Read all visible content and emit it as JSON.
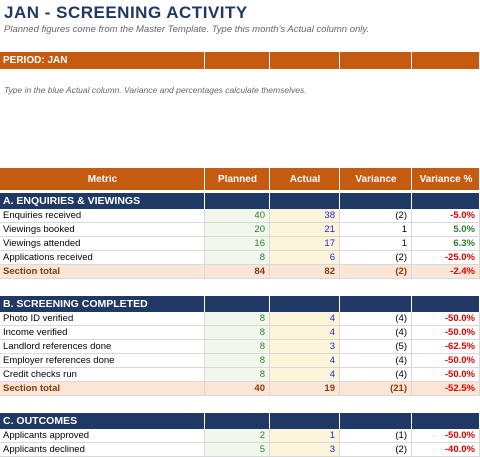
{
  "header": {
    "title": "JAN  -  SCREENING ACTIVITY",
    "subtitle": "Planned figures come from the Master Template. Type this month's Actual column only."
  },
  "period": {
    "label": "PERIOD: JAN"
  },
  "instruction": "Type in the blue Actual column. Variance and percentages calculate themselves.",
  "table": {
    "columns": [
      "Metric",
      "Planned",
      "Actual",
      "Variance",
      "Variance %"
    ],
    "sections": [
      {
        "title": "A.  ENQUIRIES & VIEWINGS",
        "rows": [
          [
            "Enquiries received",
            "40",
            "38",
            "(2)",
            "-5.0%"
          ],
          [
            "Viewings booked",
            "20",
            "21",
            "1",
            "5.0%"
          ],
          [
            "Viewings attended",
            "16",
            "17",
            "1",
            "6.3%"
          ],
          [
            "Applications received",
            "8",
            "6",
            "(2)",
            "-25.0%"
          ]
        ],
        "total": [
          "Section total",
          "84",
          "82",
          "(2)",
          "-2.4%"
        ]
      },
      {
        "title": "B.  SCREENING COMPLETED",
        "rows": [
          [
            "Photo ID verified",
            "8",
            "4",
            "(4)",
            "-50.0%"
          ],
          [
            "Income verified",
            "8",
            "4",
            "(4)",
            "-50.0%"
          ],
          [
            "Landlord references done",
            "8",
            "3",
            "(5)",
            "-62.5%"
          ],
          [
            "Employer references done",
            "8",
            "4",
            "(4)",
            "-50.0%"
          ],
          [
            "Credit checks run",
            "8",
            "4",
            "(4)",
            "-50.0%"
          ]
        ],
        "total": [
          "Section total",
          "40",
          "19",
          "(21)",
          "-52.5%"
        ]
      },
      {
        "title": "C.  OUTCOMES",
        "rows": [
          [
            "Applicants approved",
            "2",
            "1",
            "(1)",
            "-50.0%"
          ],
          [
            "Applicants declined",
            "5",
            "3",
            "(2)",
            "-40.0%"
          ]
        ]
      }
    ]
  }
}
